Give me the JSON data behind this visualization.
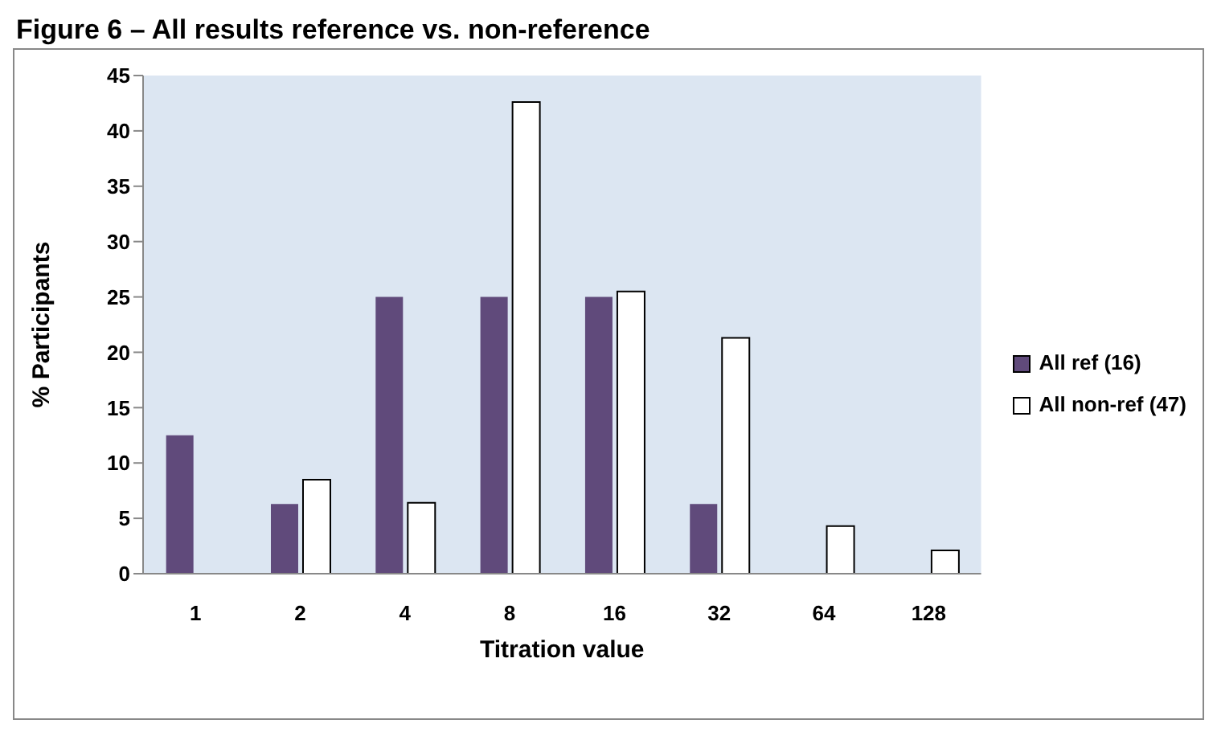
{
  "chart_data": {
    "type": "bar",
    "title": "Figure 6 – All results reference vs. non-reference",
    "xlabel": "Titration value",
    "ylabel": "% Participants",
    "categories": [
      "1",
      "2",
      "4",
      "8",
      "16",
      "32",
      "64",
      "128"
    ],
    "series": [
      {
        "name": "All ref (16)",
        "color": "#604a7b",
        "values": [
          12.5,
          6.3,
          25,
          25,
          25,
          6.3,
          0,
          0
        ]
      },
      {
        "name": "All non-ref (47)",
        "color": "#ffffff",
        "values": [
          0,
          8.5,
          6.4,
          42.6,
          25.5,
          21.3,
          4.3,
          2.1
        ]
      }
    ],
    "ylim": [
      0,
      45
    ],
    "yticks": [
      0,
      5,
      10,
      15,
      20,
      25,
      30,
      35,
      40,
      45
    ],
    "grid": false,
    "legend": "right"
  }
}
